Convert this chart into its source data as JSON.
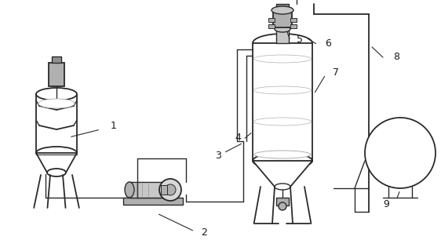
{
  "background_color": "#ffffff",
  "line_color": "#2a2a2a",
  "label_color": "#1a1a1a",
  "figsize": [
    5.62,
    3.06
  ],
  "dpi": 100,
  "gray1": "#c8c8c8",
  "gray2": "#b0b0b0",
  "gray3": "#909090",
  "gray4": "#d8d8d8"
}
